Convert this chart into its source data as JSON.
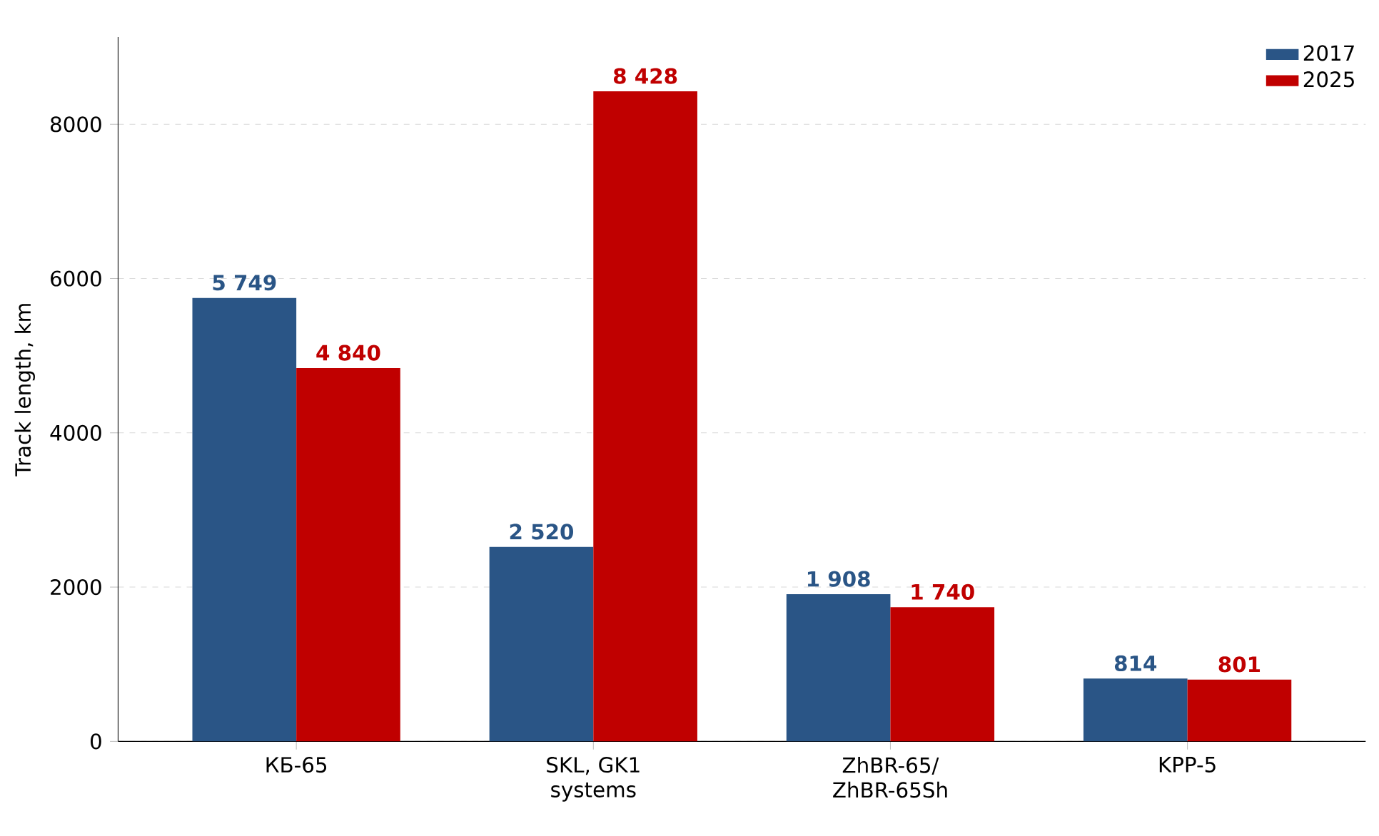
{
  "chart_data": {
    "type": "bar",
    "ylabel": "Track length, km",
    "categories": [
      "КБ-65",
      "SKL, GK1 systems",
      "ZhBR-65/ ZhBR-65Sh",
      "KPP-5"
    ],
    "series": [
      {
        "name": "2017",
        "color": "#2a5586",
        "values": [
          5749,
          2520,
          1908,
          814
        ],
        "value_labels": [
          "5 749",
          "2 520",
          "1 908",
          "814"
        ]
      },
      {
        "name": "2025",
        "color": "#c00000",
        "values": [
          4840,
          8428,
          1740,
          801
        ],
        "value_labels": [
          "4 840",
          "8 428",
          "1 740",
          "801"
        ]
      }
    ],
    "ylim": [
      0,
      9130
    ],
    "yticks": [
      0,
      2000,
      4000,
      6000,
      8000
    ],
    "grid": "y",
    "legend": "top right"
  }
}
